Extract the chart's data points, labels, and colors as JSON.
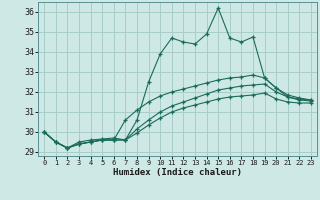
{
  "background_color": "#cde8e5",
  "grid_color": "#a8ceca",
  "line_color": "#1a6b5a",
  "x_label": "Humidex (Indice chaleur)",
  "ylim": [
    28.8,
    36.5
  ],
  "xlim": [
    -0.5,
    23.5
  ],
  "yticks": [
    29,
    30,
    31,
    32,
    33,
    34,
    35,
    36
  ],
  "xticks": [
    0,
    1,
    2,
    3,
    4,
    5,
    6,
    7,
    8,
    9,
    10,
    11,
    12,
    13,
    14,
    15,
    16,
    17,
    18,
    19,
    20,
    21,
    22,
    23
  ],
  "lines": [
    {
      "x": [
        0,
        1,
        2,
        3,
        4,
        5,
        6,
        7,
        8,
        9,
        10,
        11,
        12,
        13,
        14,
        15,
        16,
        17,
        18,
        19,
        20,
        21,
        22,
        23
      ],
      "y": [
        30.0,
        29.5,
        29.2,
        29.5,
        29.6,
        29.65,
        29.7,
        29.6,
        30.6,
        32.5,
        33.9,
        34.7,
        34.5,
        34.4,
        34.9,
        36.2,
        34.7,
        34.5,
        34.75,
        32.7,
        32.2,
        31.75,
        31.65,
        31.6
      ]
    },
    {
      "x": [
        0,
        1,
        2,
        3,
        4,
        5,
        6,
        7,
        8,
        9,
        10,
        11,
        12,
        13,
        14,
        15,
        16,
        17,
        18,
        19,
        20,
        21,
        22,
        23
      ],
      "y": [
        30.0,
        29.5,
        29.2,
        29.4,
        29.5,
        29.6,
        29.6,
        30.6,
        31.1,
        31.5,
        31.8,
        32.0,
        32.15,
        32.3,
        32.45,
        32.6,
        32.7,
        32.75,
        32.85,
        32.7,
        32.2,
        31.85,
        31.7,
        31.6
      ]
    },
    {
      "x": [
        0,
        1,
        2,
        3,
        4,
        5,
        6,
        7,
        8,
        9,
        10,
        11,
        12,
        13,
        14,
        15,
        16,
        17,
        18,
        19,
        20,
        21,
        22,
        23
      ],
      "y": [
        30.0,
        29.5,
        29.2,
        29.4,
        29.5,
        29.6,
        29.6,
        29.6,
        30.15,
        30.6,
        31.0,
        31.3,
        31.5,
        31.7,
        31.9,
        32.1,
        32.2,
        32.3,
        32.35,
        32.4,
        32.0,
        31.75,
        31.6,
        31.55
      ]
    },
    {
      "x": [
        0,
        1,
        2,
        3,
        4,
        5,
        6,
        7,
        8,
        9,
        10,
        11,
        12,
        13,
        14,
        15,
        16,
        17,
        18,
        19,
        20,
        21,
        22,
        23
      ],
      "y": [
        30.0,
        29.5,
        29.2,
        29.4,
        29.5,
        29.6,
        29.6,
        29.6,
        29.95,
        30.35,
        30.7,
        31.0,
        31.2,
        31.35,
        31.5,
        31.65,
        31.75,
        31.8,
        31.85,
        31.95,
        31.65,
        31.5,
        31.45,
        31.45
      ]
    }
  ]
}
